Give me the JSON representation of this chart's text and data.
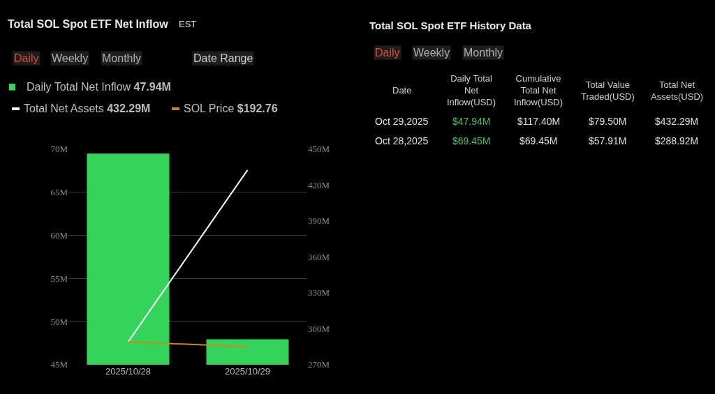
{
  "chart_data": [
    {
      "type": "bar",
      "title": "Total SOL Spot ETF Net Inflow",
      "categories": [
        "2025/10/28",
        "2025/10/29"
      ],
      "series": [
        {
          "name": "Daily Total Net Inflow",
          "type": "bar",
          "color": "#33d35c",
          "values": [
            69.45,
            47.94
          ]
        },
        {
          "name": "Total Net Assets",
          "type": "line",
          "axis": "y2",
          "color": "#ffffff",
          "values": [
            288.92,
            432.29
          ]
        },
        {
          "name": "SOL Price",
          "type": "line",
          "axis": "y2",
          "color": "#c98a1a",
          "values": [
            289,
            285
          ]
        }
      ],
      "ylim": [
        45,
        70
      ],
      "yticks": [
        {
          "value": 45,
          "label": "45M"
        },
        {
          "value": 50,
          "label": "50M"
        },
        {
          "value": 55,
          "label": "55M"
        },
        {
          "value": 60,
          "label": "60M"
        },
        {
          "value": 65,
          "label": "65M"
        },
        {
          "value": 70,
          "label": "70M"
        }
      ],
      "y2lim": [
        270,
        450
      ],
      "y2ticks": [
        {
          "value": 270,
          "label": "270M"
        },
        {
          "value": 300,
          "label": "300M"
        },
        {
          "value": 330,
          "label": "330M"
        },
        {
          "value": 360,
          "label": "360M"
        },
        {
          "value": 390,
          "label": "390M"
        },
        {
          "value": 420,
          "label": "420M"
        },
        {
          "value": 450,
          "label": "450M"
        }
      ],
      "grid": "y",
      "legend": "top left",
      "marker": "none",
      "line_style": "solid",
      "annotations": [
        "EST",
        "Daily",
        "Weekly",
        "Monthly",
        "Date Range",
        "47.94M",
        "432.29M",
        "$192.76"
      ]
    },
    {
      "type": "other",
      "title": "Total SOL Spot ETF History Data",
      "annotations": [
        "Daily",
        "Weekly",
        "Monthly",
        "Date",
        "Daily Total\nNet\nInflow(USD)",
        "Cumulative\nTotal Net\nInflow(USD)",
        "Total Value\nTraded(USD)",
        "Total Net\nAssets(USD)",
        "Oct 29,2025",
        "$47.94M",
        "$117.40M",
        "$79.50M",
        "$432.29M",
        "Oct 28,2025",
        "$69.45M",
        "$69.45M",
        "$57.91M",
        "$288.92M"
      ]
    }
  ]
}
